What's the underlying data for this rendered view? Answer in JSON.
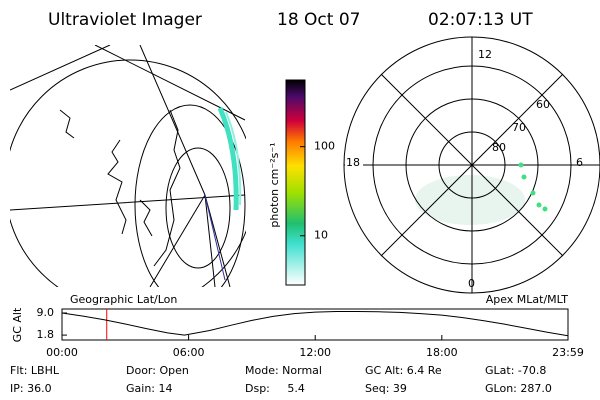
{
  "header": {
    "title": "Ultraviolet Imager",
    "date": "18 Oct 07",
    "time": "02:07:13 UT"
  },
  "colorbar": {
    "label": "photon cm⁻²s⁻¹",
    "lim": [
      2.8,
      560
    ],
    "log": true,
    "ticks": [
      100,
      10
    ]
  },
  "geographic_panel": {
    "label": "Geographic Lat/Lon"
  },
  "apex_panel": {
    "label": "Apex MLat/MLT",
    "mlt_labels": [
      "12",
      "18",
      "6",
      "0"
    ],
    "mlat_labels": [
      "60",
      "70",
      "80"
    ]
  },
  "altitude_plot": {
    "y_label": "GC Alt",
    "ylim": [
      0.2,
      10.3
    ],
    "yticks": [
      {
        "value": 9.0,
        "label": "9.0"
      },
      {
        "value": 1.8,
        "label": "1.8"
      }
    ],
    "xlim": [
      0,
      23.98
    ],
    "xticks": [
      {
        "value": 0,
        "label": "00:00"
      },
      {
        "value": 6,
        "label": "06:00"
      },
      {
        "value": 12,
        "label": "12:00"
      },
      {
        "value": 18,
        "label": "18:00"
      },
      {
        "value": 23.98,
        "label": "23:59"
      }
    ],
    "x": [
      0,
      1,
      2,
      3,
      4,
      5,
      5.8,
      7,
      8,
      9,
      10,
      11,
      12,
      13,
      14,
      15,
      16,
      17,
      18,
      19,
      20,
      21,
      22,
      23,
      23.98
    ],
    "values": [
      9.0,
      8.0,
      6.8,
      5.4,
      3.9,
      2.5,
      1.8,
      3.3,
      5.0,
      6.6,
      7.9,
      8.8,
      9.3,
      9.5,
      9.5,
      9.4,
      9.2,
      8.8,
      8.3,
      7.5,
      6.5,
      5.3,
      4.0,
      2.7,
      1.6
    ],
    "line_color": "#000000",
    "marker_x": 2.12,
    "marker_color": "#ff0000"
  },
  "info": [
    [
      "Flt: LBHL",
      "Door: Open",
      "Mode: Normal",
      "GC Alt: 6.4 Re",
      "GLat: -70.8"
    ],
    [
      "IP: 36.0",
      "Gain: 14",
      "Dsp:     5.4",
      "Seq: 39",
      "GLon: 287.0"
    ]
  ]
}
